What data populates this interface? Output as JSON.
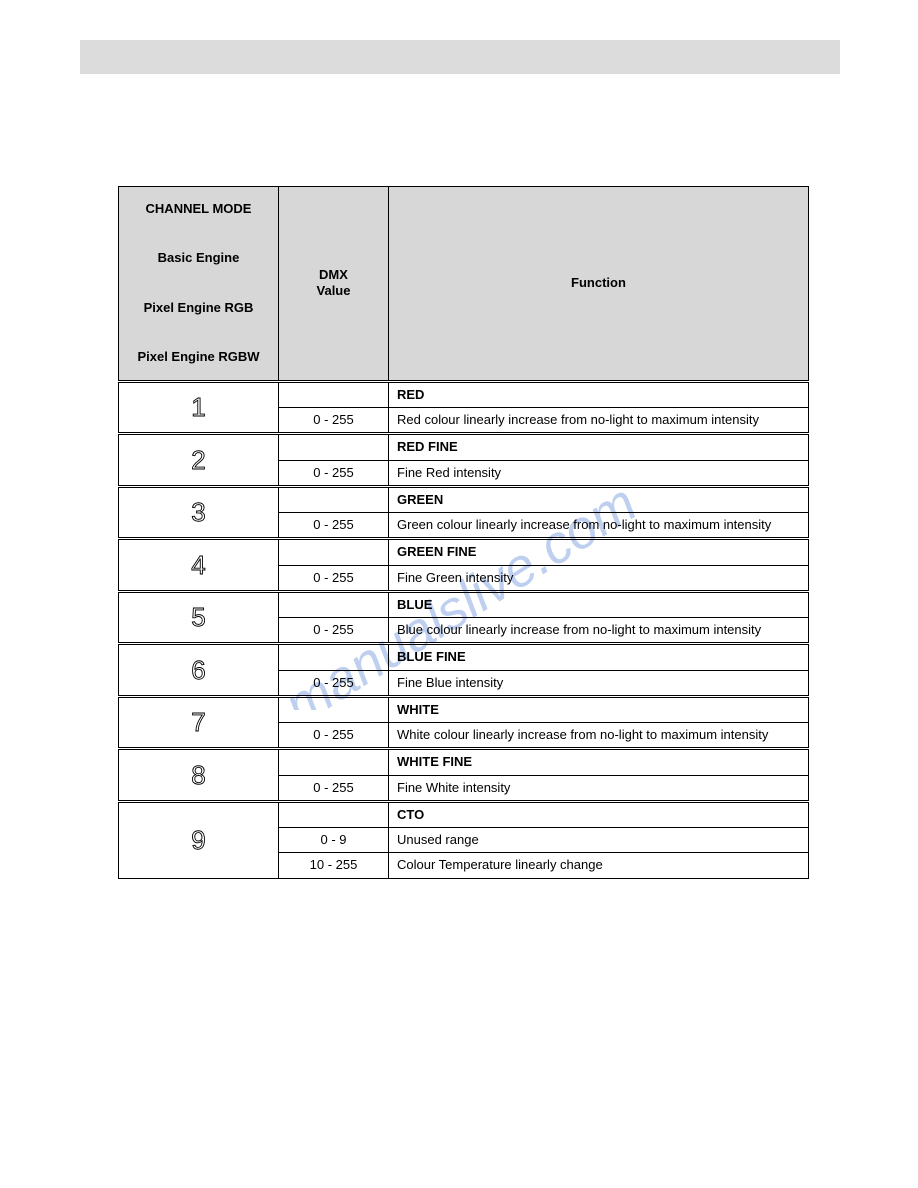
{
  "colors": {
    "page_bg": "#ffffff",
    "bar_bg": "#dcdcdc",
    "header_bg": "#d7d7d7",
    "border": "#000000",
    "watermark": "#8aa9e4"
  },
  "fonts": {
    "body": "Arial",
    "size_cell": 13,
    "size_channel_num": 26
  },
  "watermark_text": "manualslive.com",
  "header": {
    "channel_col": "CHANNEL MODE\n\nBasic Engine\n\nPixel Engine RGB\n\nPixel Engine RGBW",
    "dmx_col": "DMX\nValue",
    "function_col": "Function"
  },
  "channels": [
    {
      "num": "1",
      "rows": [
        {
          "dmx": "",
          "func": "RED",
          "bold": true
        },
        {
          "dmx": "0 - 255",
          "func": "Red colour linearly increase from no-light to maximum intensity"
        }
      ]
    },
    {
      "num": "2",
      "rows": [
        {
          "dmx": "",
          "func": "RED FINE",
          "bold": true
        },
        {
          "dmx": "0 - 255",
          "func": "Fine Red intensity"
        }
      ]
    },
    {
      "num": "3",
      "rows": [
        {
          "dmx": "",
          "func": "GREEN",
          "bold": true
        },
        {
          "dmx": "0 - 255",
          "func": "Green colour linearly increase from no-light to maximum intensity"
        }
      ]
    },
    {
      "num": "4",
      "rows": [
        {
          "dmx": "",
          "func": "GREEN FINE",
          "bold": true
        },
        {
          "dmx": "0 - 255",
          "func": "Fine Green intensity"
        }
      ]
    },
    {
      "num": "5",
      "rows": [
        {
          "dmx": "",
          "func": "BLUE",
          "bold": true
        },
        {
          "dmx": "0 - 255",
          "func": "Blue colour linearly increase from no-light to maximum intensity"
        }
      ]
    },
    {
      "num": "6",
      "rows": [
        {
          "dmx": "",
          "func": "BLUE FINE",
          "bold": true
        },
        {
          "dmx": "0 - 255",
          "func": "Fine Blue intensity"
        }
      ]
    },
    {
      "num": "7",
      "rows": [
        {
          "dmx": "",
          "func": "WHITE",
          "bold": true
        },
        {
          "dmx": "0 - 255",
          "func": "White colour linearly increase from no-light to maximum intensity"
        }
      ]
    },
    {
      "num": "8",
      "rows": [
        {
          "dmx": "",
          "func": "WHITE FINE",
          "bold": true
        },
        {
          "dmx": "0 - 255",
          "func": "Fine White intensity"
        }
      ]
    },
    {
      "num": "9",
      "rows": [
        {
          "dmx": "",
          "func": "CTO",
          "bold": true
        },
        {
          "dmx": "0 - 9",
          "func": "Unused range"
        },
        {
          "dmx": "10 - 255",
          "func": "Colour Temperature linearly change"
        }
      ]
    }
  ]
}
